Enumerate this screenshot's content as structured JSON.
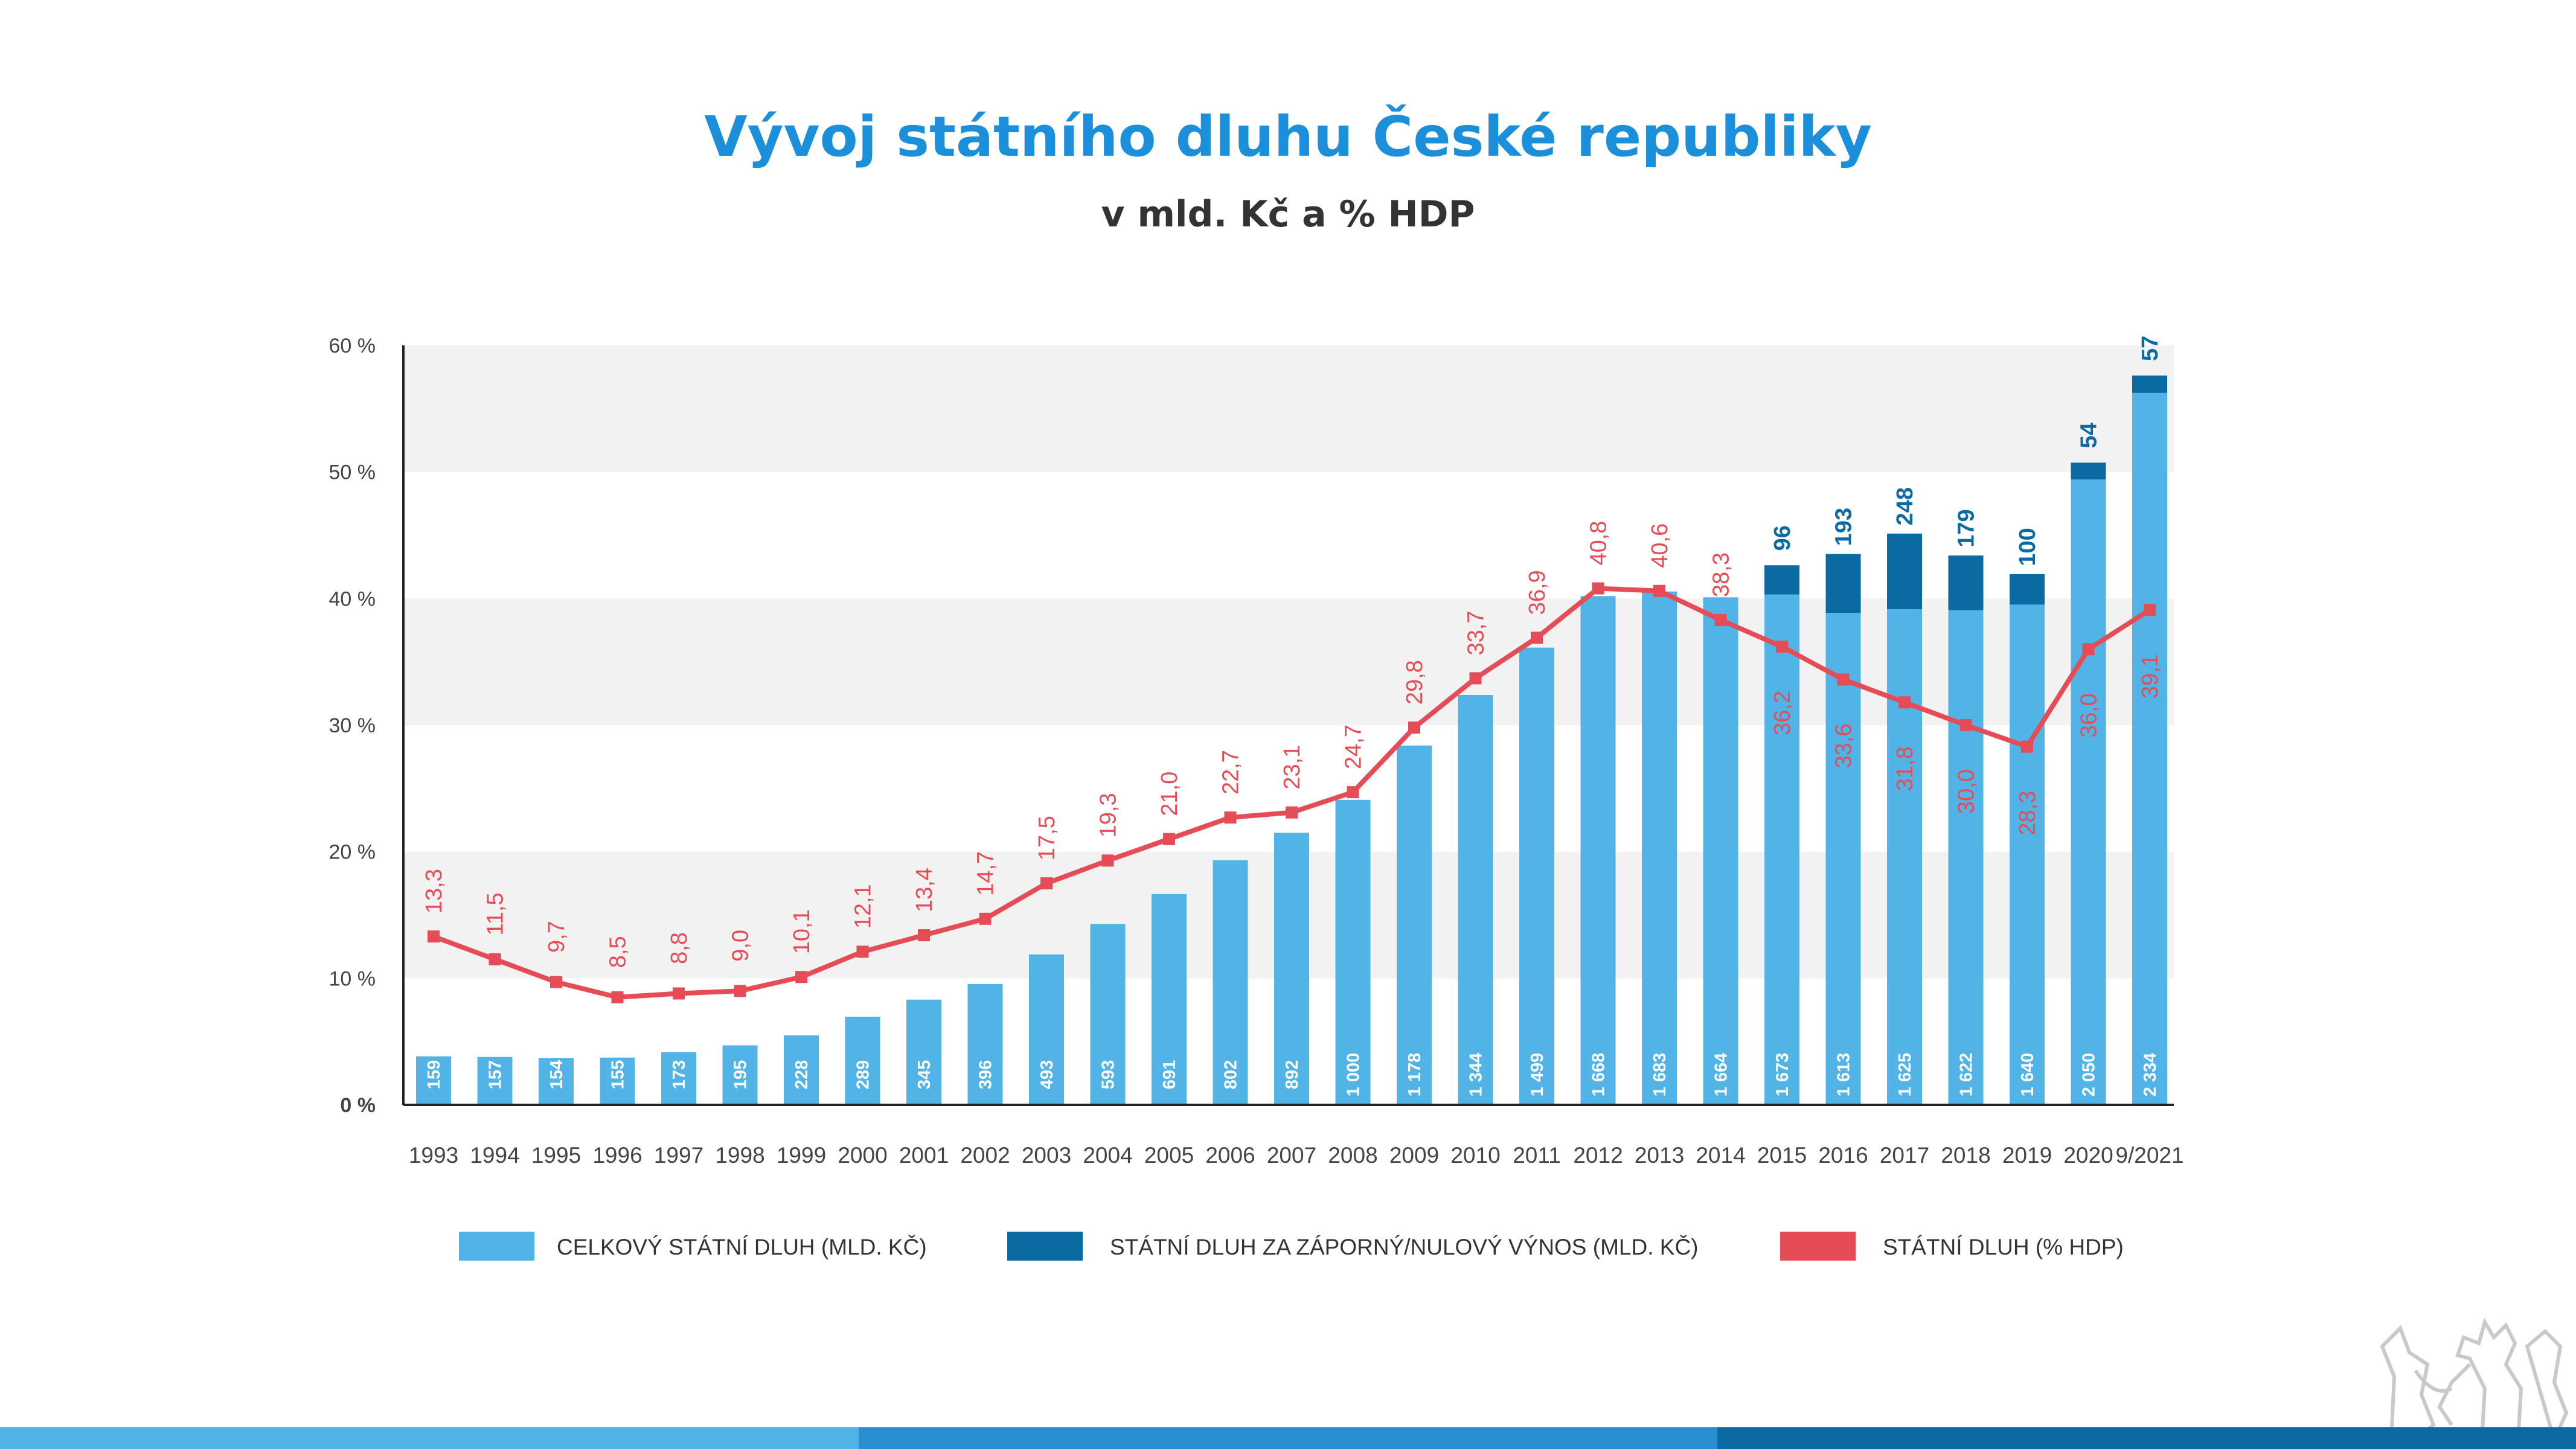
{
  "colors": {
    "total": "#52b4e6",
    "negative": "#0b6aa2",
    "line": "#e64c55",
    "band": "#f2f2f2",
    "footer": [
      "#52b4e6",
      "#2a8fd0",
      "#0b6aa2"
    ]
  },
  "emblem_icon": "czech-lion-emblem-icon",
  "chart_data": {
    "type": "bar+line",
    "title": "Vývoj státního dluhu České republiky",
    "subtitle": "v mld. Kč a % HDP",
    "categories": [
      "1993",
      "1994",
      "1995",
      "1996",
      "1997",
      "1998",
      "1999",
      "2000",
      "2001",
      "2002",
      "2003",
      "2004",
      "2005",
      "2006",
      "2007",
      "2008",
      "2009",
      "2010",
      "2011",
      "2012",
      "2013",
      "2014",
      "2015",
      "2016",
      "2017",
      "2018",
      "2019",
      "2020",
      "9/2021"
    ],
    "total_labels": [
      "159",
      "157",
      "154",
      "155",
      "173",
      "195",
      "228",
      "289",
      "345",
      "396",
      "493",
      "593",
      "691",
      "802",
      "892",
      "1 000",
      "1 178",
      "1 344",
      "1 499",
      "1 668",
      "1 683",
      "1 664",
      "1 673",
      "1 613",
      "1 625",
      "1 622",
      "1 640",
      "2 050",
      "2 334"
    ],
    "total_values": [
      159,
      157,
      154,
      155,
      173,
      195,
      228,
      289,
      345,
      396,
      493,
      593,
      691,
      802,
      892,
      1000,
      1178,
      1344,
      1499,
      1668,
      1683,
      1664,
      1673,
      1613,
      1625,
      1622,
      1640,
      2050,
      2334
    ],
    "negative_yield_values": [
      null,
      null,
      null,
      null,
      null,
      null,
      null,
      null,
      null,
      null,
      null,
      null,
      null,
      null,
      null,
      null,
      null,
      null,
      null,
      null,
      null,
      null,
      96,
      193,
      248,
      179,
      100,
      54,
      57
    ],
    "negative_yield_labels": [
      "",
      "",
      "",
      "",
      "",
      "",
      "",
      "",
      "",
      "",
      "",
      "",
      "",
      "",
      "",
      "",
      "",
      "",
      "",
      "",
      "",
      "",
      "96",
      "193",
      "248",
      "179",
      "100",
      "54",
      "57"
    ],
    "pct_gdp_values": [
      13.3,
      11.5,
      9.7,
      8.5,
      8.8,
      9.0,
      10.1,
      12.1,
      13.4,
      14.7,
      17.5,
      19.3,
      21.0,
      22.7,
      23.1,
      24.7,
      29.8,
      33.7,
      36.9,
      40.8,
      40.6,
      38.3,
      36.2,
      33.6,
      31.8,
      30.0,
      28.3,
      36.0,
      39.1
    ],
    "pct_gdp_labels": [
      "13,3",
      "11,5",
      "9,7",
      "8,5",
      "8,8",
      "9,0",
      "10,1",
      "12,1",
      "13,4",
      "14,7",
      "17,5",
      "19,3",
      "21,0",
      "22,7",
      "23,1",
      "24,7",
      "29,8",
      "33,7",
      "36,9",
      "40,8",
      "40,6",
      "38,3",
      "36,2",
      "33,6",
      "31,8",
      "30,0",
      "28,3",
      "36,0",
      "39,1"
    ],
    "y_ticks": [
      {
        "value": 0,
        "label": "0 %"
      },
      {
        "value": 10,
        "label": "10 %"
      },
      {
        "value": 20,
        "label": "20 %"
      },
      {
        "value": 30,
        "label": "30 %"
      },
      {
        "value": 40,
        "label": "40 %"
      },
      {
        "value": 50,
        "label": "50 %"
      },
      {
        "value": 60,
        "label": "60 %"
      }
    ],
    "ylim": [
      0,
      60
    ],
    "bar_scale_bn_czk_per_pct": 41.5,
    "legend_position": "bottom",
    "legend": [
      {
        "key": "total",
        "label": "CELKOVÝ STÁTNÍ DLUH (MLD. KČ)"
      },
      {
        "key": "negative",
        "label": "STÁTNÍ DLUH ZA ZÁPORNÝ/NULOVÝ VÝNOS (MLD. KČ)"
      },
      {
        "key": "line",
        "label": "STÁTNÍ DLUH  (% HDP)"
      }
    ]
  }
}
